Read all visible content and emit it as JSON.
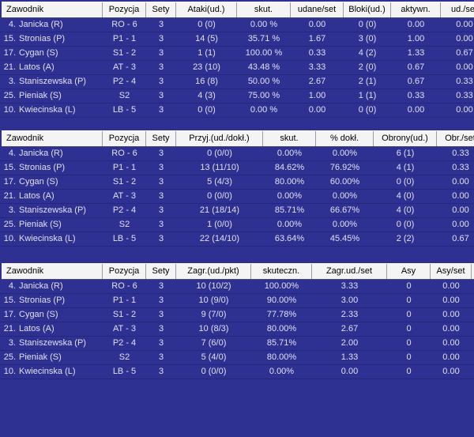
{
  "colors": {
    "background": "#2e3192",
    "row_text": "#e0e0f4",
    "header_bg": "#f4f4f4",
    "header_text": "#000000"
  },
  "tables": [
    {
      "id": "attack-block",
      "columns": [
        "Zawodnik",
        "Pozycja",
        "Sety",
        "Ataki(ud.)",
        "skut.",
        "udane/set",
        "Bloki(ud.)",
        "aktywn.",
        "ud./set"
      ],
      "rows": [
        {
          "player_no": "4.",
          "player_name": "Janicka (R)",
          "values": [
            "RO - 6",
            "3",
            "0 (0)",
            "0.00 %",
            "0.00",
            "0 (0)",
            "0.00",
            "0.00"
          ]
        },
        {
          "player_no": "15.",
          "player_name": "Stronias (P)",
          "values": [
            "P1 - 1",
            "3",
            "14 (5)",
            "35.71 %",
            "1.67",
            "3 (0)",
            "1.00",
            "0.00"
          ]
        },
        {
          "player_no": "17.",
          "player_name": "Cygan (S)",
          "values": [
            "S1 - 2",
            "3",
            "1 (1)",
            "100.00 %",
            "0.33",
            "4 (2)",
            "1.33",
            "0.67"
          ]
        },
        {
          "player_no": "21.",
          "player_name": "Latos (A)",
          "values": [
            "AT - 3",
            "3",
            "23 (10)",
            "43.48 %",
            "3.33",
            "2 (0)",
            "0.67",
            "0.00"
          ]
        },
        {
          "player_no": "3.",
          "player_name": "Staniszewska (P)",
          "values": [
            "P2 - 4",
            "3",
            "16 (8)",
            "50.00 %",
            "2.67",
            "2 (1)",
            "0.67",
            "0.33"
          ]
        },
        {
          "player_no": "25.",
          "player_name": "Pieniak (S)",
          "values": [
            "S2",
            "3",
            "4 (3)",
            "75.00 %",
            "1.00",
            "1 (1)",
            "0.33",
            "0.33"
          ]
        },
        {
          "player_no": "10.",
          "player_name": "Kwiecinska (L)",
          "values": [
            "LB - 5",
            "3",
            "0 (0)",
            "0.00 %",
            "0.00",
            "0 (0)",
            "0.00",
            "0.00"
          ]
        }
      ]
    },
    {
      "id": "reception-defense",
      "columns": [
        "Zawodnik",
        "Pozycja",
        "Sety",
        "Przyj.(ud./dokł.)",
        "skut.",
        "% dokł.",
        "Obrony(ud.)",
        "Obr./set"
      ],
      "rows": [
        {
          "player_no": "4.",
          "player_name": "Janicka (R)",
          "values": [
            "RO - 6",
            "3",
            "0 (0/0)",
            "0.00%",
            "0.00%",
            "6 (1)",
            "0.33"
          ]
        },
        {
          "player_no": "15.",
          "player_name": "Stronias (P)",
          "values": [
            "P1 - 1",
            "3",
            "13 (11/10)",
            "84.62%",
            "76.92%",
            "4 (1)",
            "0.33"
          ]
        },
        {
          "player_no": "17.",
          "player_name": "Cygan (S)",
          "values": [
            "S1 - 2",
            "3",
            "5 (4/3)",
            "80.00%",
            "60.00%",
            "0 (0)",
            "0.00"
          ]
        },
        {
          "player_no": "21.",
          "player_name": "Latos (A)",
          "values": [
            "AT - 3",
            "3",
            "0 (0/0)",
            "0.00%",
            "0.00%",
            "4 (0)",
            "0.00"
          ]
        },
        {
          "player_no": "3.",
          "player_name": "Staniszewska (P)",
          "values": [
            "P2 - 4",
            "3",
            "21 (18/14)",
            "85.71%",
            "66.67%",
            "4 (0)",
            "0.00"
          ]
        },
        {
          "player_no": "25.",
          "player_name": "Pieniak (S)",
          "values": [
            "S2",
            "3",
            "1 (0/0)",
            "0.00%",
            "0.00%",
            "0 (0)",
            "0.00"
          ]
        },
        {
          "player_no": "10.",
          "player_name": "Kwiecinska (L)",
          "values": [
            "LB - 5",
            "3",
            "22 (14/10)",
            "63.64%",
            "45.45%",
            "2 (2)",
            "0.67"
          ]
        }
      ]
    },
    {
      "id": "serve",
      "columns": [
        "Zawodnik",
        "Pozycja",
        "Sety",
        "Zagr.(ud./pkt)",
        "skuteczn.",
        "Zagr.ud./set",
        "Asy",
        "Asy/set"
      ],
      "rows": [
        {
          "player_no": "4.",
          "player_name": "Janicka (R)",
          "values": [
            "RO - 6",
            "3",
            "10 (10/2)",
            "100.00%",
            "3.33",
            "0",
            "0.00"
          ]
        },
        {
          "player_no": "15.",
          "player_name": "Stronias (P)",
          "values": [
            "P1 - 1",
            "3",
            "10 (9/0)",
            "90.00%",
            "3.00",
            "0",
            "0.00"
          ]
        },
        {
          "player_no": "17.",
          "player_name": "Cygan (S)",
          "values": [
            "S1 - 2",
            "3",
            "9 (7/0)",
            "77.78%",
            "2.33",
            "0",
            "0.00"
          ]
        },
        {
          "player_no": "21.",
          "player_name": "Latos (A)",
          "values": [
            "AT - 3",
            "3",
            "10 (8/3)",
            "80.00%",
            "2.67",
            "0",
            "0.00"
          ]
        },
        {
          "player_no": "3.",
          "player_name": "Staniszewska (P)",
          "values": [
            "P2 - 4",
            "3",
            "7 (6/0)",
            "85.71%",
            "2.00",
            "0",
            "0.00"
          ]
        },
        {
          "player_no": "25.",
          "player_name": "Pieniak (S)",
          "values": [
            "S2",
            "3",
            "5 (4/0)",
            "80.00%",
            "1.33",
            "0",
            "0.00"
          ]
        },
        {
          "player_no": "10.",
          "player_name": "Kwiecinska (L)",
          "values": [
            "LB - 5",
            "3",
            "0 (0/0)",
            "0.00%",
            "0.00",
            "0",
            "0.00"
          ]
        }
      ]
    }
  ]
}
